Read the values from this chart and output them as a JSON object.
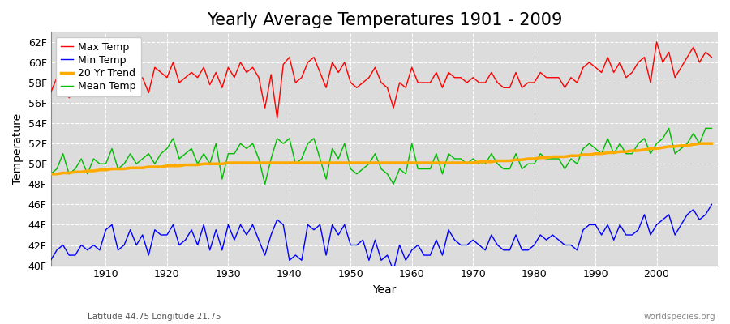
{
  "title": "Yearly Average Temperatures 1901 - 2009",
  "xlabel": "Year",
  "ylabel": "Temperature",
  "bottom_left": "Latitude 44.75 Longitude 21.75",
  "bottom_right": "worldspecies.org",
  "years": [
    1901,
    1902,
    1903,
    1904,
    1905,
    1906,
    1907,
    1908,
    1909,
    1910,
    1911,
    1912,
    1913,
    1914,
    1915,
    1916,
    1917,
    1918,
    1919,
    1920,
    1921,
    1922,
    1923,
    1924,
    1925,
    1926,
    1927,
    1928,
    1929,
    1930,
    1931,
    1932,
    1933,
    1934,
    1935,
    1936,
    1937,
    1938,
    1939,
    1940,
    1941,
    1942,
    1943,
    1944,
    1945,
    1946,
    1947,
    1948,
    1949,
    1950,
    1951,
    1952,
    1953,
    1954,
    1955,
    1956,
    1957,
    1958,
    1959,
    1960,
    1961,
    1962,
    1963,
    1964,
    1965,
    1966,
    1967,
    1968,
    1969,
    1970,
    1971,
    1972,
    1973,
    1974,
    1975,
    1976,
    1977,
    1978,
    1979,
    1980,
    1981,
    1982,
    1983,
    1984,
    1985,
    1986,
    1987,
    1988,
    1989,
    1990,
    1991,
    1992,
    1993,
    1994,
    1995,
    1996,
    1997,
    1998,
    1999,
    2000,
    2001,
    2002,
    2003,
    2004,
    2005,
    2006,
    2007,
    2008,
    2009
  ],
  "max_temp": [
    57.0,
    58.5,
    57.8,
    56.5,
    57.2,
    58.8,
    57.5,
    58.0,
    57.8,
    59.0,
    59.5,
    57.5,
    58.2,
    59.0,
    58.0,
    58.5,
    57.0,
    59.5,
    59.0,
    58.5,
    60.0,
    58.0,
    58.5,
    59.0,
    58.5,
    59.5,
    57.8,
    59.0,
    57.5,
    59.5,
    58.5,
    60.0,
    59.0,
    59.5,
    58.5,
    55.5,
    58.8,
    54.5,
    59.8,
    60.5,
    58.0,
    58.5,
    60.0,
    60.5,
    59.0,
    57.5,
    60.0,
    59.0,
    60.0,
    58.0,
    57.5,
    58.0,
    58.5,
    59.5,
    58.0,
    57.5,
    55.5,
    58.0,
    57.5,
    59.5,
    58.0,
    58.0,
    58.0,
    59.0,
    57.5,
    59.0,
    58.5,
    58.5,
    58.0,
    58.5,
    58.0,
    58.0,
    59.0,
    58.0,
    57.5,
    57.5,
    59.0,
    57.5,
    58.0,
    58.0,
    59.0,
    58.5,
    58.5,
    58.5,
    57.5,
    58.5,
    58.0,
    59.5,
    60.0,
    59.5,
    59.0,
    60.5,
    59.0,
    60.0,
    58.5,
    59.0,
    60.0,
    60.5,
    58.0,
    62.0,
    60.0,
    61.0,
    58.5,
    59.5,
    60.5,
    61.5,
    60.0,
    61.0,
    60.5
  ],
  "mean_temp": [
    49.0,
    49.5,
    51.0,
    49.0,
    49.5,
    50.5,
    49.0,
    50.5,
    50.0,
    50.0,
    51.5,
    49.5,
    50.0,
    51.0,
    50.0,
    50.5,
    51.0,
    50.0,
    51.0,
    51.5,
    52.5,
    50.5,
    51.0,
    51.5,
    50.0,
    51.0,
    50.0,
    52.0,
    48.5,
    51.0,
    51.0,
    52.0,
    51.5,
    52.0,
    50.5,
    48.0,
    50.5,
    52.5,
    52.0,
    52.5,
    50.0,
    50.5,
    52.0,
    52.5,
    50.5,
    48.5,
    51.5,
    50.5,
    52.0,
    49.5,
    49.0,
    49.5,
    50.0,
    51.0,
    49.5,
    49.0,
    48.0,
    49.5,
    49.0,
    52.0,
    49.5,
    49.5,
    49.5,
    51.0,
    49.0,
    51.0,
    50.5,
    50.5,
    50.0,
    50.5,
    50.0,
    50.0,
    51.0,
    50.0,
    49.5,
    49.5,
    51.0,
    49.5,
    50.0,
    50.0,
    51.0,
    50.5,
    50.5,
    50.5,
    49.5,
    50.5,
    50.0,
    51.5,
    52.0,
    51.5,
    51.0,
    52.5,
    51.0,
    52.0,
    51.0,
    51.0,
    52.0,
    52.5,
    51.0,
    52.0,
    52.5,
    53.5,
    51.0,
    51.5,
    52.0,
    53.0,
    52.0,
    53.5,
    53.5
  ],
  "trend": [
    49.0,
    49.0,
    49.1,
    49.1,
    49.2,
    49.2,
    49.3,
    49.3,
    49.4,
    49.4,
    49.5,
    49.5,
    49.5,
    49.6,
    49.6,
    49.6,
    49.7,
    49.7,
    49.7,
    49.8,
    49.8,
    49.8,
    49.9,
    49.9,
    49.9,
    50.0,
    50.0,
    50.0,
    50.0,
    50.1,
    50.1,
    50.1,
    50.1,
    50.1,
    50.1,
    50.1,
    50.1,
    50.1,
    50.1,
    50.1,
    50.1,
    50.1,
    50.1,
    50.1,
    50.1,
    50.1,
    50.1,
    50.1,
    50.1,
    50.1,
    50.1,
    50.1,
    50.1,
    50.1,
    50.1,
    50.1,
    50.1,
    50.1,
    50.1,
    50.1,
    50.1,
    50.1,
    50.1,
    50.1,
    50.1,
    50.1,
    50.1,
    50.1,
    50.1,
    50.1,
    50.2,
    50.2,
    50.2,
    50.3,
    50.3,
    50.3,
    50.4,
    50.4,
    50.5,
    50.5,
    50.6,
    50.6,
    50.7,
    50.7,
    50.7,
    50.8,
    50.8,
    50.9,
    50.9,
    51.0,
    51.0,
    51.1,
    51.1,
    51.2,
    51.2,
    51.3,
    51.3,
    51.4,
    51.5,
    51.5,
    51.6,
    51.7,
    51.7,
    51.8,
    51.8,
    51.9,
    52.0,
    52.0,
    52.0
  ],
  "min_temp": [
    40.5,
    41.5,
    42.0,
    41.0,
    41.0,
    42.0,
    41.5,
    42.0,
    41.5,
    43.5,
    44.0,
    41.5,
    42.0,
    43.5,
    42.0,
    43.0,
    41.0,
    43.5,
    43.0,
    43.0,
    44.0,
    42.0,
    42.5,
    43.5,
    42.0,
    44.0,
    41.5,
    43.5,
    41.5,
    44.0,
    42.5,
    44.0,
    43.0,
    44.0,
    42.5,
    41.0,
    43.0,
    44.5,
    44.0,
    40.5,
    41.0,
    40.5,
    44.0,
    43.5,
    44.0,
    41.0,
    44.0,
    43.0,
    44.0,
    42.0,
    42.0,
    42.5,
    40.5,
    42.5,
    40.5,
    41.0,
    39.5,
    42.0,
    40.5,
    41.5,
    42.0,
    41.0,
    41.0,
    42.5,
    41.0,
    43.5,
    42.5,
    42.0,
    42.0,
    42.5,
    42.0,
    41.5,
    43.0,
    42.0,
    41.5,
    41.5,
    43.0,
    41.5,
    41.5,
    42.0,
    43.0,
    42.5,
    43.0,
    42.5,
    42.0,
    42.0,
    41.5,
    43.5,
    44.0,
    44.0,
    43.0,
    44.0,
    42.5,
    44.0,
    43.0,
    43.0,
    43.5,
    45.0,
    43.0,
    44.0,
    44.5,
    45.0,
    43.0,
    44.0,
    45.0,
    45.5,
    44.5,
    45.0,
    46.0
  ],
  "bg_color": "#dcdcdc",
  "fig_color": "#ffffff",
  "max_color": "#ff0000",
  "mean_color": "#00bb00",
  "min_color": "#0000ff",
  "trend_color": "#ffaa00",
  "grid_color": "#ffffff",
  "ylim": [
    40,
    63
  ],
  "yticks": [
    40,
    42,
    44,
    46,
    48,
    50,
    52,
    54,
    56,
    58,
    60,
    62
  ],
  "ytick_labels": [
    "40F",
    "42F",
    "44F",
    "46F",
    "48F",
    "50F",
    "52F",
    "54F",
    "56F",
    "58F",
    "60F",
    "62F"
  ],
  "xticks": [
    1910,
    1920,
    1930,
    1940,
    1950,
    1960,
    1970,
    1980,
    1990,
    2000
  ],
  "xlim": [
    1901,
    2010
  ],
  "title_fontsize": 15,
  "axis_label_fontsize": 10,
  "tick_fontsize": 9,
  "legend_fontsize": 9,
  "linewidth": 1.0,
  "trend_linewidth": 2.5
}
